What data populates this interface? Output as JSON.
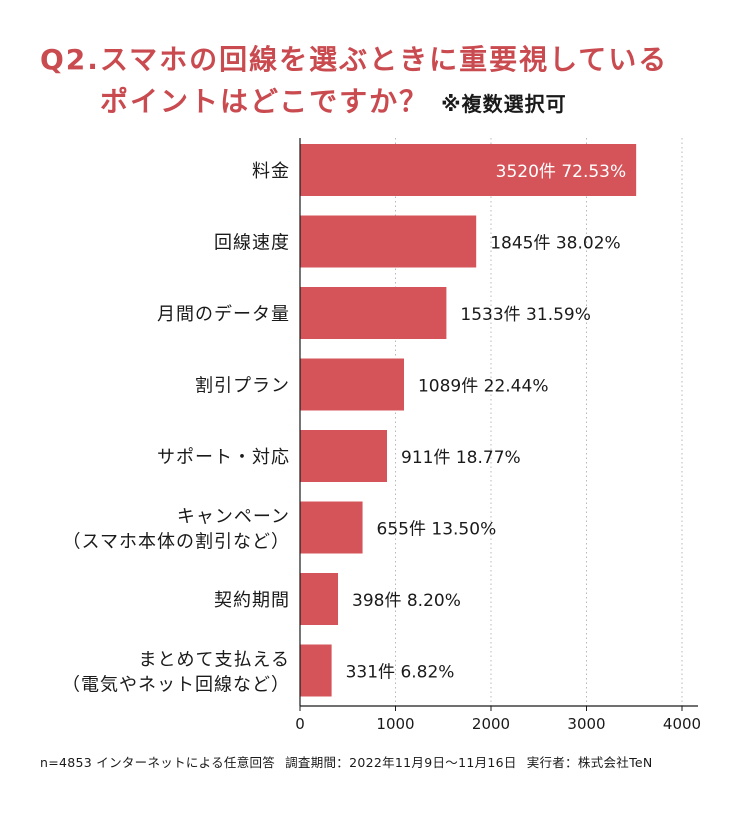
{
  "title": {
    "line1": "Q2.スマホの回線を選ぶときに重要視している",
    "line2": "ポイントはどこですか？",
    "note": "※複数選択可"
  },
  "chart_data": {
    "type": "bar",
    "orientation": "horizontal",
    "categories": [
      [
        "料金"
      ],
      [
        "回線速度"
      ],
      [
        "月間のデータ量"
      ],
      [
        "割引プラン"
      ],
      [
        "サポート・対応"
      ],
      [
        "キャンペーン",
        "（スマホ本体の割引など）"
      ],
      [
        "契約期間"
      ],
      [
        "まとめて支払える",
        "（電気やネット回線など）"
      ]
    ],
    "values": [
      3520,
      1845,
      1533,
      1089,
      911,
      655,
      398,
      331
    ],
    "percents": [
      "72.53%",
      "38.02%",
      "31.59%",
      "22.44%",
      "18.77%",
      "13.50%",
      "8.20%",
      "6.82%"
    ],
    "unit": "件",
    "xlim": [
      0,
      4000
    ],
    "xticks": [
      0,
      1000,
      2000,
      3000,
      4000
    ],
    "grid": "vertical dotted",
    "bar_color": "#d4545a"
  },
  "footer": {
    "sample": "n=4853 インターネットによる任意回答",
    "period": "調査期間：2022年11月9日～11月16日",
    "executor": "実行者：株式会社TeN"
  }
}
